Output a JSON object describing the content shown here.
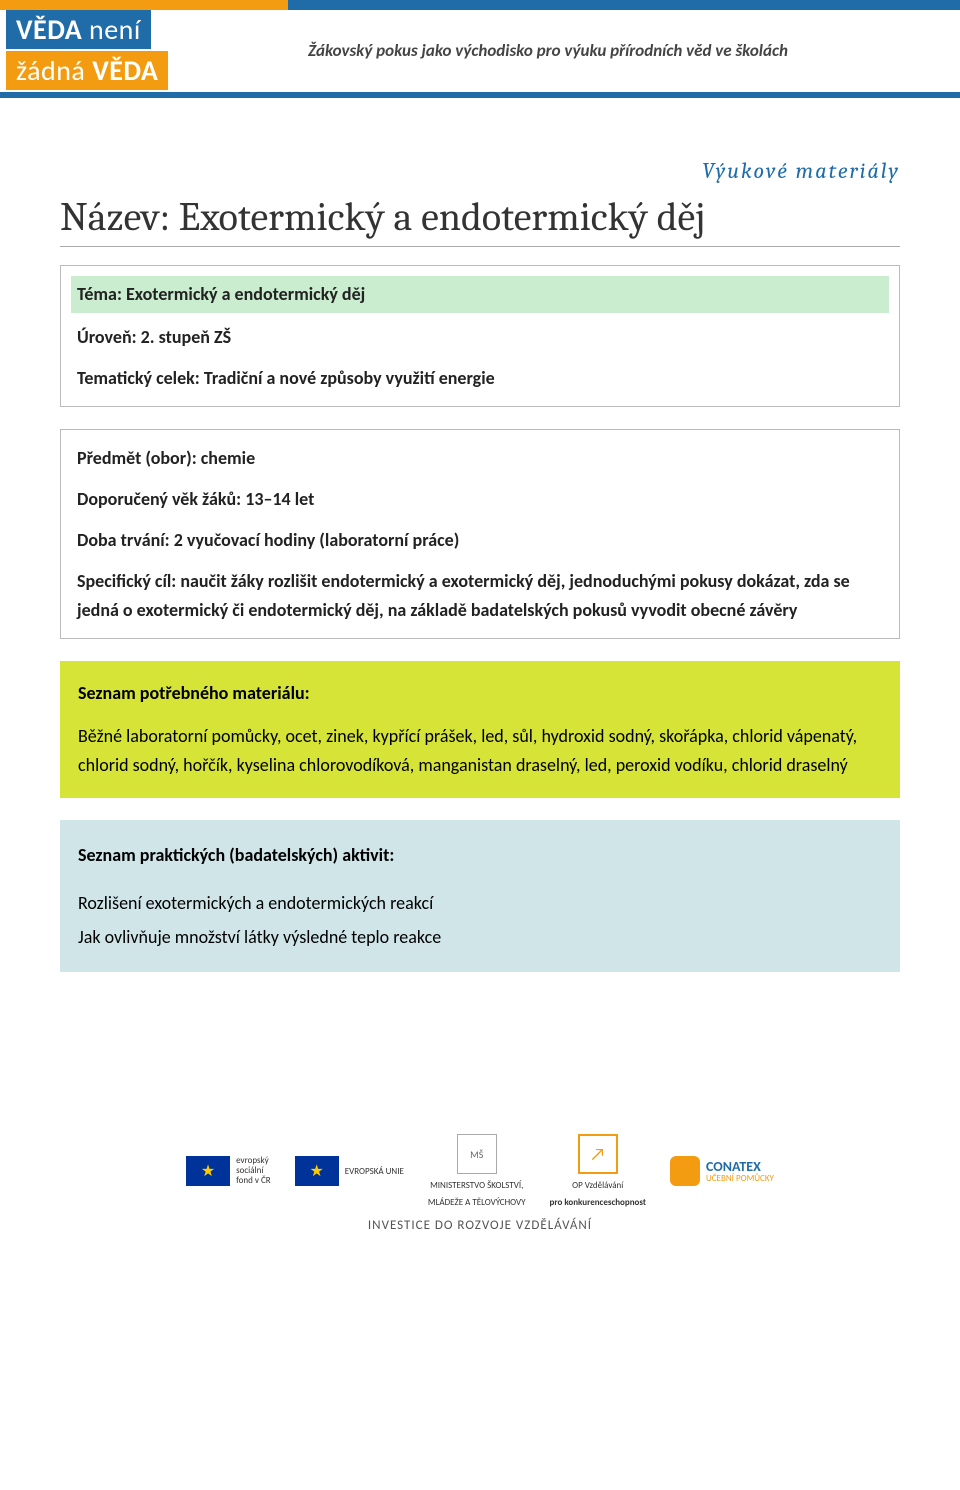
{
  "header": {
    "logo_line1_a": "VĚDA",
    "logo_line1_b": "není",
    "logo_line2_a": "žádná",
    "logo_line2_b": "VĚDA",
    "tagline": "Žákovský pokus jako východisko pro výuku přírodních věd ve školách",
    "color_blue": "#1f6ca8",
    "color_orange": "#f39c12"
  },
  "doc": {
    "category": "Výukové materiály",
    "title": "Název: Exotermický a endotermický děj",
    "box1": {
      "tema_label": "Téma: Exotermický a endotermický děj",
      "uroven": "Úroveň: 2. stupeň ZŠ",
      "celek": "Tematický celek: Tradiční a nové způsoby využití energie",
      "highlight_bg": "#c9edce"
    },
    "box2": {
      "predmet": "Předmět (obor): chemie",
      "vek": "Doporučený věk žáků: 13–14 let",
      "doba": "Doba trvání: 2 vyučovací hodiny (laboratorní práce)",
      "cil": "Specifický cíl: naučit žáky rozlišit endotermický a exotermický děj, jednoduchými pokusy dokázat, zda se jedná o exotermický či endotermický děj, na základě badatelských pokusů vyvodit obecné závěry"
    },
    "yellow": {
      "heading": "Seznam potřebného materiálu:",
      "body": "Běžné laboratorní pomůcky, ocet, zinek, kypřící prášek, led, sůl, hydroxid sodný, skořápka, chlorid vápenatý, chlorid sodný, hořčík, kyselina chlorovodíková, manganistan draselný, led, peroxid vodíku, chlorid draselný",
      "bg": "#d6e437"
    },
    "blue": {
      "heading": "Seznam praktických (badatelských) aktivit:",
      "line1": "Rozlišení exotermických a endotermických reakcí",
      "line2": "Jak ovlivňuje množství látky výsledné teplo reakce",
      "bg": "#cfe5e8"
    }
  },
  "footer": {
    "esf1": "evropský",
    "esf2": "sociální",
    "esf3": "fond v ČR",
    "eu": "EVROPSKÁ UNIE",
    "msmt1": "MINISTERSTVO ŠKOLSTVÍ,",
    "msmt2": "MLÁDEŽE A TĚLOVÝCHOVY",
    "op1": "OP Vzdělávání",
    "op2": "pro konkurenceschopnost",
    "conatex1": "CONATEX",
    "conatex2": "UČEBNÍ POMŮCKY",
    "tagline": "INVESTICE DO ROZVOJE VZDĚLÁVÁNÍ"
  }
}
